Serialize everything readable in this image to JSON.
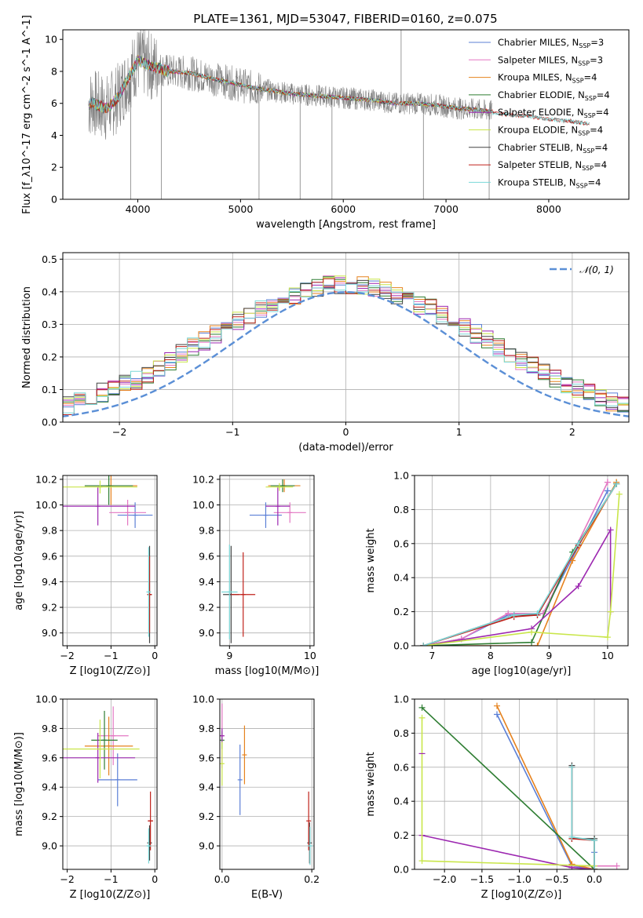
{
  "figure_title": "PLATE=1361, MJD=53047, FIBERID=0160, z=0.075",
  "colors": {
    "Chabrier MILES": "#5b7fd6",
    "Salpeter MILES": "#e377c2",
    "Kroupa MILES": "#e6821e",
    "Chabrier ELODIE": "#2e7d32",
    "Salpeter ELODIE": "#9c27b0",
    "Kroupa ELODIE": "#c9e64a",
    "Chabrier STELIB": "#444444",
    "Salpeter STELIB": "#c0221b",
    "Kroupa STELIB": "#7ad8d8",
    "data": "#808080",
    "normal": "#5b8fd6",
    "grid": "#b0b0b0"
  },
  "chart_data": [
    {
      "id": "spectrum",
      "type": "line",
      "xlabel": "wavelength [Angstrom, rest frame]",
      "ylabel": "Flux [f_λ10^-17 erg cm^-2 s^-1 A^-1]",
      "xlim": [
        3270,
        8780
      ],
      "ylim": [
        0,
        10.6
      ],
      "xticks": [
        4000,
        5000,
        6000,
        7000,
        8000
      ],
      "yticks": [
        0,
        2,
        4,
        6,
        8,
        10
      ],
      "grid": false,
      "legend_position": "top-right",
      "legend": [
        "Chabrier MILES, N_SSP=3",
        "Salpeter MILES, N_SSP=3",
        "Kroupa MILES, N_SSP=4",
        "Chabrier ELODIE, N_SSP=4",
        "Salpeter ELODIE, N_SSP=4",
        "Kroupa ELODIE, N_SSP=4",
        "Chabrier STELIB, N_SSP=4",
        "Salpeter STELIB, N_SSP=4",
        "Kroupa STELIB, N_SSP=4"
      ],
      "continuum": {
        "x": [
          3520,
          3560,
          3600,
          3700,
          3800,
          3900,
          4000,
          4100,
          4300,
          4500,
          4700,
          4900,
          5100,
          5300,
          5500,
          5700,
          5900,
          6100,
          6300,
          6500,
          6700,
          6900,
          7100,
          7300,
          7450
        ],
        "y": [
          5.9,
          6.1,
          5.9,
          5.7,
          6.3,
          7.5,
          8.7,
          8.4,
          8.0,
          7.9,
          7.6,
          7.3,
          7.0,
          6.8,
          6.6,
          6.5,
          6.4,
          6.3,
          6.2,
          6.0,
          6.0,
          5.9,
          5.7,
          5.6,
          5.5
        ]
      },
      "stelib_extension": {
        "x": [
          7450,
          7600,
          7800,
          8000,
          8200,
          8400
        ],
        "y": [
          5.4,
          5.3,
          5.2,
          5.0,
          4.9,
          4.7
        ]
      },
      "absorption_spikes": [
        {
          "x": 3930,
          "y": 0
        },
        {
          "x": 4230,
          "y": 0
        },
        {
          "x": 5180,
          "y": 0
        },
        {
          "x": 5580,
          "y": 0
        },
        {
          "x": 5890,
          "y": 0
        },
        {
          "x": 6780,
          "y": 0
        },
        {
          "x": 7420,
          "y": 0
        }
      ],
      "emission_spikes": [
        {
          "x": 6563,
          "y": 10.6
        }
      ]
    },
    {
      "id": "residuals",
      "type": "area",
      "xlabel": "(data-model)/error",
      "ylabel": "Normed distribution",
      "xlim": [
        -2.5,
        2.5
      ],
      "ylim": [
        0,
        0.52
      ],
      "xticks": [
        -2,
        -1,
        0,
        1,
        2
      ],
      "yticks": [
        0,
        0.1,
        0.2,
        0.3,
        0.4,
        0.5
      ],
      "grid": true,
      "legend_position": "top-right",
      "legend": [
        "𝒩(0, 1)"
      ],
      "bin_width": 0.1,
      "hist_base": [
        0.03,
        0.03,
        0.03,
        0.04,
        0.05,
        0.06,
        0.07,
        0.09,
        0.1,
        0.12,
        0.13,
        0.15,
        0.17,
        0.19,
        0.21,
        0.23,
        0.25,
        0.27,
        0.29,
        0.31,
        0.33,
        0.35,
        0.36,
        0.38,
        0.39,
        0.4,
        0.41,
        0.42,
        0.42,
        0.42,
        0.42,
        0.41,
        0.4,
        0.39,
        0.38,
        0.36,
        0.35,
        0.33,
        0.31,
        0.29,
        0.27,
        0.25,
        0.23,
        0.21,
        0.19,
        0.17,
        0.15,
        0.13,
        0.11,
        0.1,
        0.09,
        0.07,
        0.06,
        0.05,
        0.04,
        0.03,
        0.03,
        0.03
      ]
    },
    {
      "id": "age_vs_Z",
      "type": "scatter",
      "xlabel": "Z [log10(Z/Z⊙)]",
      "ylabel": "age  [log10(age/yr)]",
      "xlim": [
        -2.1,
        0.05
      ],
      "ylim": [
        8.9,
        10.23
      ],
      "xticks": [
        -2,
        -1,
        0
      ],
      "yticks": [
        9.0,
        9.2,
        9.4,
        9.6,
        9.8,
        10.0,
        10.2
      ],
      "grid": true,
      "points": [
        {
          "model": "Chabrier MILES",
          "x": -0.45,
          "y": 9.92,
          "xerr": 0.4,
          "yerr": 0.1
        },
        {
          "model": "Salpeter MILES",
          "x": -0.62,
          "y": 9.94,
          "xerr": 0.42,
          "yerr": 0.1
        },
        {
          "model": "Kroupa MILES",
          "x": -1.0,
          "y": 10.15,
          "xerr": 0.6,
          "yerr": 0.15
        },
        {
          "model": "Chabrier ELODIE",
          "x": -1.05,
          "y": 10.15,
          "xerr": 0.55,
          "yerr": 0.15
        },
        {
          "model": "Salpeter ELODIE",
          "x": -1.3,
          "y": 9.99,
          "xerr": 0.85,
          "yerr": 0.15
        },
        {
          "model": "Kroupa ELODIE",
          "x": -1.25,
          "y": 10.14,
          "xerr": 0.85,
          "yerr": 0.05
        },
        {
          "model": "Chabrier STELIB",
          "x": -0.12,
          "y": 9.3,
          "xerr": 0.04,
          "yerr": 0.38
        },
        {
          "model": "Salpeter STELIB",
          "x": -0.12,
          "y": 9.3,
          "xerr": 0.04,
          "yerr": 0.3
        },
        {
          "model": "Kroupa STELIB",
          "x": -0.14,
          "y": 9.32,
          "xerr": 0.03,
          "yerr": 0.35
        }
      ]
    },
    {
      "id": "age_vs_mass",
      "type": "scatter",
      "xlabel": "mass [log10(M/M⊙)]",
      "ylabel": "",
      "xlim": [
        8.88,
        10.05
      ],
      "ylim": [
        8.9,
        10.23
      ],
      "xticks": [
        9,
        10
      ],
      "yticks": [
        9.0,
        9.2,
        9.4,
        9.6,
        9.8,
        10.0,
        10.2
      ],
      "grid": true,
      "points": [
        {
          "model": "Chabrier MILES",
          "x": 9.45,
          "y": 9.92,
          "xerr": 0.2,
          "yerr": 0.1
        },
        {
          "model": "Salpeter MILES",
          "x": 9.75,
          "y": 9.94,
          "xerr": 0.2,
          "yerr": 0.08
        },
        {
          "model": "Kroupa MILES",
          "x": 9.68,
          "y": 10.15,
          "xerr": 0.2,
          "yerr": 0.05
        },
        {
          "model": "Chabrier ELODIE",
          "x": 9.66,
          "y": 10.15,
          "xerr": 0.15,
          "yerr": 0.05
        },
        {
          "model": "Salpeter ELODIE",
          "x": 9.6,
          "y": 9.99,
          "xerr": 0.15,
          "yerr": 0.15
        },
        {
          "model": "Kroupa ELODIE",
          "x": 9.62,
          "y": 10.14,
          "xerr": 0.17,
          "yerr": 0.03
        },
        {
          "model": "Chabrier STELIB",
          "x": 9.02,
          "y": 9.3,
          "xerr": 0.1,
          "yerr": 0.38
        },
        {
          "model": "Salpeter STELIB",
          "x": 9.17,
          "y": 9.3,
          "xerr": 0.15,
          "yerr": 0.33
        },
        {
          "model": "Kroupa STELIB",
          "x": 9.0,
          "y": 9.32,
          "xerr": 0.1,
          "yerr": 0.37
        }
      ]
    },
    {
      "id": "cumulative_age",
      "type": "line",
      "xlabel": "age  [log10(age/yr)]",
      "ylabel": "mass weight",
      "xlim": [
        6.7,
        10.35
      ],
      "ylim": [
        0,
        1.0
      ],
      "xticks": [
        7,
        8,
        9,
        10
      ],
      "yticks": [
        0,
        0.2,
        0.4,
        0.6,
        0.8,
        1.0
      ],
      "grid": true,
      "series": [
        {
          "model": "Chabrier MILES",
          "x": [
            6.85,
            7.5,
            8.3,
            8.9,
            10.0,
            10.0
          ],
          "y": [
            0.0,
            0.04,
            0.18,
            0.19,
            0.91,
            0.91
          ]
        },
        {
          "model": "Salpeter MILES",
          "x": [
            6.85,
            7.5,
            8.3,
            8.9,
            10.0,
            10.0
          ],
          "y": [
            0.0,
            0.04,
            0.19,
            0.19,
            0.96,
            0.96
          ]
        },
        {
          "model": "Kroupa MILES",
          "x": [
            6.85,
            8.8,
            9.4,
            10.15,
            10.15
          ],
          "y": [
            0.0,
            0.0,
            0.5,
            0.96,
            0.96
          ]
        },
        {
          "model": "Chabrier ELODIE",
          "x": [
            6.85,
            8.7,
            9.4,
            10.15,
            10.15
          ],
          "y": [
            0.0,
            0.02,
            0.55,
            0.95,
            0.95
          ]
        },
        {
          "model": "Salpeter ELODIE",
          "x": [
            6.85,
            8.7,
            9.5,
            10.05,
            10.05
          ],
          "y": [
            0.0,
            0.1,
            0.35,
            0.68,
            0.2
          ]
        },
        {
          "model": "Kroupa ELODIE",
          "x": [
            6.85,
            8.7,
            10.0,
            10.05,
            10.2
          ],
          "y": [
            0.0,
            0.08,
            0.05,
            0.2,
            0.89
          ]
        },
        {
          "model": "Chabrier STELIB",
          "x": [
            6.85,
            8.4,
            8.8,
            9.5,
            10.15
          ],
          "y": [
            0.0,
            0.18,
            0.18,
            0.6,
            0.95
          ]
        },
        {
          "model": "Salpeter STELIB",
          "x": [
            6.85,
            8.4,
            8.8,
            9.5,
            10.15
          ],
          "y": [
            0.0,
            0.17,
            0.18,
            0.59,
            0.95
          ]
        },
        {
          "model": "Kroupa STELIB",
          "x": [
            6.85,
            8.4,
            8.8,
            9.5,
            10.15
          ],
          "y": [
            0.0,
            0.18,
            0.19,
            0.6,
            0.95
          ]
        }
      ]
    },
    {
      "id": "mass_vs_Z",
      "type": "scatter",
      "xlabel": "Z [log10(Z/Z⊙)]",
      "ylabel": "mass [log10(M/M⊙)]",
      "xlim": [
        -2.1,
        0.05
      ],
      "ylim": [
        8.84,
        10.0
      ],
      "xticks": [
        -2,
        -1,
        0
      ],
      "yticks": [
        9.0,
        9.2,
        9.4,
        9.6,
        9.8,
        10.0
      ],
      "grid": true,
      "points": [
        {
          "model": "Chabrier MILES",
          "x": -0.85,
          "y": 9.45,
          "xerr": 0.45,
          "yerr": 0.18
        },
        {
          "model": "Salpeter MILES",
          "x": -0.95,
          "y": 9.75,
          "xerr": 0.35,
          "yerr": 0.2
        },
        {
          "model": "Kroupa MILES",
          "x": -1.05,
          "y": 9.68,
          "xerr": 0.55,
          "yerr": 0.2
        },
        {
          "model": "Chabrier ELODIE",
          "x": -1.15,
          "y": 9.72,
          "xerr": 0.3,
          "yerr": 0.2
        },
        {
          "model": "Salpeter ELODIE",
          "x": -1.3,
          "y": 9.6,
          "xerr": 0.85,
          "yerr": 0.17
        },
        {
          "model": "Kroupa ELODIE",
          "x": -1.25,
          "y": 9.66,
          "xerr": 0.9,
          "yerr": 0.2
        },
        {
          "model": "Chabrier STELIB",
          "x": -0.12,
          "y": 9.02,
          "xerr": 0.04,
          "yerr": 0.12
        },
        {
          "model": "Salpeter STELIB",
          "x": -0.1,
          "y": 9.17,
          "xerr": 0.06,
          "yerr": 0.2
        },
        {
          "model": "Kroupa STELIB",
          "x": -0.14,
          "y": 9.0,
          "xerr": 0.04,
          "yerr": 0.12
        }
      ]
    },
    {
      "id": "mass_vs_ebv",
      "type": "scatter",
      "xlabel": "E(B-V)",
      "ylabel": "",
      "xlim": [
        -0.005,
        0.205
      ],
      "ylim": [
        8.84,
        10.0
      ],
      "xticks": [
        0.0,
        0.2
      ],
      "yticks": [
        9.0,
        9.2,
        9.4,
        9.6,
        9.8,
        10.0
      ],
      "grid": true,
      "points": [
        {
          "model": "Chabrier MILES",
          "x": 0.04,
          "y": 9.45,
          "xerr": 0.0,
          "yerr": 0.24
        },
        {
          "model": "Salpeter MILES",
          "x": 0.0,
          "y": 9.75,
          "xerr": 0.0,
          "yerr": 0.22
        },
        {
          "model": "Kroupa MILES",
          "x": 0.05,
          "y": 9.62,
          "xerr": 0.0,
          "yerr": 0.2
        },
        {
          "model": "Chabrier ELODIE",
          "x": 0.0,
          "y": 9.72,
          "xerr": 0.0,
          "yerr": 0.06
        },
        {
          "model": "Salpeter ELODIE",
          "x": 0.0,
          "y": 9.75,
          "xerr": 0.0,
          "yerr": 0.05
        },
        {
          "model": "Kroupa ELODIE",
          "x": 0.0,
          "y": 9.56,
          "xerr": 0.0,
          "yerr": 0.15
        },
        {
          "model": "Chabrier STELIB",
          "x": 0.195,
          "y": 9.02,
          "xerr": 0.0,
          "yerr": 0.14
        },
        {
          "model": "Salpeter STELIB",
          "x": 0.193,
          "y": 9.17,
          "xerr": 0.0,
          "yerr": 0.2
        },
        {
          "model": "Kroupa STELIB",
          "x": 0.196,
          "y": 9.0,
          "xerr": 0.0,
          "yerr": 0.13
        }
      ]
    },
    {
      "id": "cumulative_Z",
      "type": "line",
      "xlabel": "Z [log10(Z/Z⊙)]",
      "ylabel": "mass weight",
      "xlim": [
        -2.4,
        0.45
      ],
      "ylim": [
        0,
        1.0
      ],
      "xticks": [
        -2.0,
        -1.5,
        -1.0,
        -0.5,
        0.0
      ],
      "yticks": [
        0,
        0.2,
        0.4,
        0.6,
        0.8,
        1.0
      ],
      "grid": true,
      "series": [
        {
          "model": "Chabrier MILES",
          "x": [
            -1.3,
            -0.3,
            0.0,
            0.0
          ],
          "y": [
            0.91,
            0.02,
            0.0,
            0.1
          ]
        },
        {
          "model": "Salpeter MILES",
          "x": [
            -0.3,
            0.0,
            0.3
          ],
          "y": [
            0.02,
            0.02,
            0.02
          ]
        },
        {
          "model": "Kroupa MILES",
          "x": [
            -1.3,
            -0.3,
            0.0,
            0.0
          ],
          "y": [
            0.96,
            0.03,
            0.0,
            0.0
          ]
        },
        {
          "model": "Chabrier ELODIE",
          "x": [
            -2.3,
            0.0,
            0.0
          ],
          "y": [
            0.95,
            0.0,
            0.18
          ]
        },
        {
          "model": "Salpeter ELODIE",
          "x": [
            -2.3,
            -0.3,
            0.0
          ],
          "y": [
            0.2,
            0.01,
            0.0
          ]
        },
        {
          "model": "Kroupa ELODIE",
          "x": [
            -2.3,
            -2.3,
            0.0,
            0.0
          ],
          "y": [
            0.89,
            0.05,
            0.02,
            0.0
          ]
        },
        {
          "model": "Chabrier STELIB",
          "x": [
            -0.3,
            -0.3,
            0.0,
            0.0
          ],
          "y": [
            0.61,
            0.18,
            0.18,
            0.0
          ]
        },
        {
          "model": "Salpeter STELIB",
          "x": [
            -0.3,
            -0.3,
            0.0,
            0.0
          ],
          "y": [
            0.6,
            0.18,
            0.17,
            0.0
          ]
        },
        {
          "model": "Kroupa STELIB",
          "x": [
            -0.3,
            -0.3,
            0.0,
            0.0
          ],
          "y": [
            0.6,
            0.19,
            0.17,
            0.0
          ]
        }
      ],
      "markers": [
        {
          "model": "Salpeter ELODIE",
          "x": -2.3,
          "y": 0.68
        }
      ]
    }
  ]
}
